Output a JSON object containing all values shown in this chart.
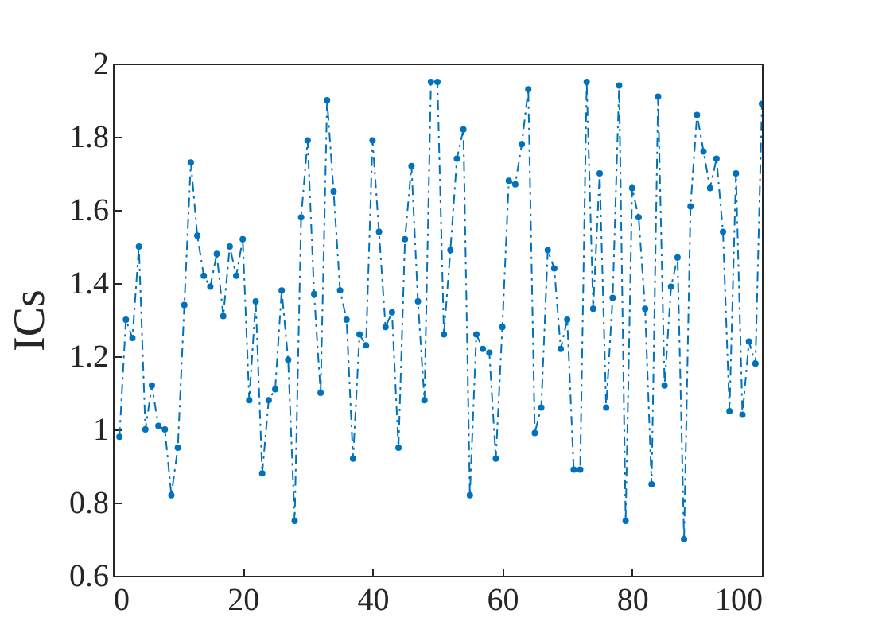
{
  "chart_data": {
    "type": "line",
    "ylabel": "ICs",
    "x": [
      1,
      2,
      3,
      4,
      5,
      6,
      7,
      8,
      9,
      10,
      11,
      12,
      13,
      14,
      15,
      16,
      17,
      18,
      19,
      20,
      21,
      22,
      23,
      24,
      25,
      26,
      27,
      28,
      29,
      30,
      31,
      32,
      33,
      34,
      35,
      36,
      37,
      38,
      39,
      40,
      41,
      42,
      43,
      44,
      45,
      46,
      47,
      48,
      49,
      50,
      51,
      52,
      53,
      54,
      55,
      56,
      57,
      58,
      59,
      60,
      61,
      62,
      63,
      64,
      65,
      66,
      67,
      68,
      69,
      70,
      71,
      72,
      73,
      74,
      75,
      76,
      77,
      78,
      79,
      80,
      81,
      82,
      83,
      84,
      85,
      86,
      87,
      88,
      89,
      90,
      91,
      92,
      93,
      94,
      95,
      96,
      97,
      98,
      99,
      100
    ],
    "series": [
      {
        "color": "#0072bd",
        "values": [
          0.98,
          1.3,
          1.25,
          1.5,
          1.0,
          1.12,
          1.01,
          1.0,
          0.82,
          0.95,
          1.34,
          1.73,
          1.53,
          1.42,
          1.39,
          1.48,
          1.31,
          1.5,
          1.42,
          1.52,
          1.08,
          1.35,
          0.88,
          1.08,
          1.11,
          1.38,
          1.19,
          0.75,
          1.58,
          1.79,
          1.37,
          1.1,
          1.9,
          1.65,
          1.38,
          1.3,
          0.92,
          1.26,
          1.23,
          1.79,
          1.54,
          1.28,
          1.32,
          0.95,
          1.52,
          1.72,
          1.35,
          1.08,
          1.95,
          1.95,
          1.26,
          1.49,
          1.74,
          1.82,
          0.82,
          1.26,
          1.22,
          1.21,
          0.92,
          1.28,
          1.68,
          1.67,
          1.78,
          1.93,
          0.99,
          1.06,
          1.49,
          1.44,
          1.22,
          1.3,
          0.89,
          0.89,
          1.95,
          1.33,
          1.7,
          1.06,
          1.36,
          1.94,
          0.75,
          1.66,
          1.58,
          1.33,
          0.85,
          1.91,
          1.12,
          1.39,
          1.47,
          0.7,
          1.61,
          1.86,
          1.76,
          1.66,
          1.74,
          1.54,
          1.05,
          1.7,
          1.04,
          1.24,
          1.18,
          1.89
        ]
      }
    ],
    "xlim": [
      0,
      100
    ],
    "xticks": [
      0,
      20,
      40,
      60,
      80,
      100
    ],
    "ylim": [
      0.6,
      2
    ],
    "yticks": [
      0.6,
      0.8,
      1,
      1.2,
      1.4,
      1.6,
      1.8,
      2
    ],
    "grid": false,
    "marker": "circle",
    "line_style": "dashed"
  }
}
